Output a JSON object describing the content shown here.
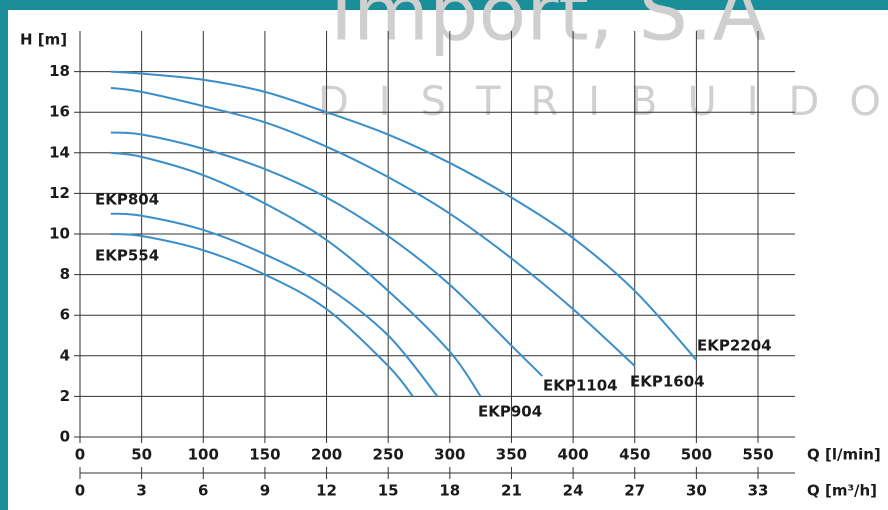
{
  "chart_data": {
    "type": "line",
    "watermark": "Import, S.A",
    "watermark_sub": "DISTRIBUIDOR",
    "y_label": "H [m]",
    "x_label": "Q [l/min]",
    "x2_label": "Q [m³/h]",
    "xlim": [
      0,
      580
    ],
    "xticks": [
      0,
      50,
      100,
      150,
      200,
      250,
      300,
      350,
      400,
      450,
      500,
      550
    ],
    "x2lim": [
      0,
      34.8
    ],
    "x2ticks": [
      0,
      3,
      6,
      9,
      12,
      15,
      18,
      21,
      24,
      27,
      30,
      33
    ],
    "ylim": [
      0,
      20
    ],
    "yticks": [
      0,
      2,
      4,
      6,
      8,
      10,
      12,
      14,
      16,
      18
    ],
    "grid": true,
    "color": "#3a8fc8",
    "series": [
      {
        "name": "EKP554",
        "x": [
          25,
          50,
          100,
          150,
          200,
          250,
          270
        ],
        "values": [
          10,
          9.9,
          9.2,
          8,
          6.3,
          3.5,
          2
        ]
      },
      {
        "name": "EKP804",
        "x": [
          25,
          50,
          100,
          150,
          200,
          250,
          290
        ],
        "values": [
          11,
          10.9,
          10.2,
          9,
          7.4,
          5,
          2
        ]
      },
      {
        "name": "EKP904",
        "x": [
          25,
          50,
          100,
          150,
          200,
          250,
          300,
          325
        ],
        "values": [
          14,
          13.8,
          12.9,
          11.5,
          9.7,
          7.2,
          4.2,
          2
        ]
      },
      {
        "name": "EKP1104",
        "x": [
          25,
          50,
          100,
          150,
          200,
          250,
          300,
          350,
          375
        ],
        "values": [
          15,
          14.9,
          14.2,
          13.2,
          11.8,
          9.9,
          7.5,
          4.5,
          3
        ]
      },
      {
        "name": "EKP1604",
        "x": [
          25,
          50,
          100,
          150,
          200,
          250,
          300,
          350,
          400,
          450
        ],
        "values": [
          17.2,
          17,
          16.3,
          15.5,
          14.3,
          12.8,
          11,
          8.8,
          6.3,
          3.5
        ]
      },
      {
        "name": "EKP2204",
        "x": [
          25,
          50,
          100,
          150,
          200,
          250,
          300,
          350,
          400,
          450,
          500
        ],
        "values": [
          18,
          17.9,
          17.6,
          17,
          16,
          14.9,
          13.5,
          11.8,
          9.8,
          7.2,
          3.8
        ]
      }
    ]
  }
}
